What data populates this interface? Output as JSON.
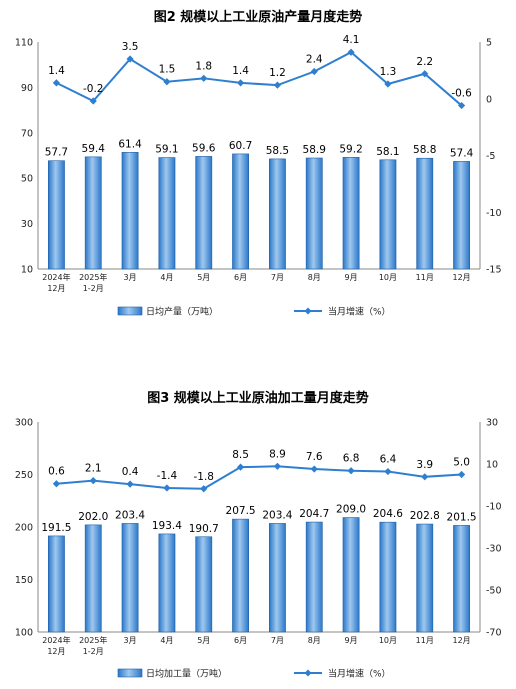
{
  "chart_data": [
    {
      "type": "bar",
      "title": "图2  规模以上工业原油产量月度走势",
      "categories": [
        "2024年\n12月",
        "2025年\n1-2月",
        "3月",
        "4月",
        "5月",
        "6月",
        "7月",
        "8月",
        "9月",
        "10月",
        "11月",
        "12月"
      ],
      "series": [
        {
          "name": "日均产量（万吨）",
          "type": "bar",
          "axis": "left",
          "values": [
            57.7,
            59.4,
            61.4,
            59.1,
            59.6,
            60.7,
            58.5,
            58.9,
            59.2,
            58.1,
            58.8,
            57.4
          ]
        },
        {
          "name": "当月增速（%）",
          "type": "line",
          "axis": "right",
          "values": [
            1.4,
            -0.2,
            3.5,
            1.5,
            1.8,
            1.4,
            1.2,
            2.4,
            4.1,
            1.3,
            2.2,
            -0.6
          ]
        }
      ],
      "ylim": [
        10,
        110
      ],
      "yticks": [
        "110",
        "90",
        "70",
        "50",
        "30",
        "10"
      ],
      "y2lim": [
        -15,
        5
      ],
      "y2ticks": [
        "5",
        "0",
        "-5",
        "-10",
        "-15"
      ],
      "bar_labels": [
        "57.7",
        "59.4",
        "61.4",
        "59.1",
        "59.6",
        "60.7",
        "58.5",
        "58.9",
        "59.2",
        "58.1",
        "58.8",
        "57.4"
      ],
      "line_labels": [
        "1.4",
        "-0.2",
        "3.5",
        "1.5",
        "1.8",
        "1.4",
        "1.2",
        "2.4",
        "4.1",
        "1.3",
        "2.2",
        "-0.6"
      ],
      "legend": {
        "position": "bottom",
        "bar": "日均产量（万吨）",
        "line": "当月增速（%）"
      },
      "grid": false,
      "colors": {
        "bar_fill": "#2a77c9",
        "bar_light": "#9fc8ee",
        "line": "#2e7fd0"
      }
    },
    {
      "type": "bar",
      "title": "图3  规模以上工业原油加工量月度走势",
      "categories": [
        "2024年\n12月",
        "2025年\n1-2月",
        "3月",
        "4月",
        "5月",
        "6月",
        "7月",
        "8月",
        "9月",
        "10月",
        "11月",
        "12月"
      ],
      "series": [
        {
          "name": "日均加工量（万吨）",
          "type": "bar",
          "axis": "left",
          "values": [
            191.5,
            202.0,
            203.4,
            193.4,
            190.7,
            207.5,
            203.4,
            204.7,
            209.0,
            204.6,
            202.8,
            201.5
          ]
        },
        {
          "name": "当月增速（%）",
          "type": "line",
          "axis": "right",
          "values": [
            0.6,
            2.1,
            0.4,
            -1.4,
            -1.8,
            8.5,
            8.9,
            7.6,
            6.8,
            6.4,
            3.9,
            5.0
          ]
        }
      ],
      "ylim": [
        100,
        300
      ],
      "yticks": [
        "300",
        "250",
        "200",
        "150",
        "100"
      ],
      "y2lim": [
        -70,
        30
      ],
      "y2ticks": [
        "30",
        "10",
        "-10",
        "-30",
        "-50",
        "-70"
      ],
      "bar_labels": [
        "191.5",
        "202.0",
        "203.4",
        "193.4",
        "190.7",
        "207.5",
        "203.4",
        "204.7",
        "209.0",
        "204.6",
        "202.8",
        "201.5"
      ],
      "line_labels": [
        "0.6",
        "2.1",
        "0.4",
        "-1.4",
        "-1.8",
        "8.5",
        "8.9",
        "7.6",
        "6.8",
        "6.4",
        "3.9",
        "5.0"
      ],
      "legend": {
        "position": "bottom",
        "bar": "日均加工量（万吨）",
        "line": "当月增速（%）"
      },
      "grid": false,
      "colors": {
        "bar_fill": "#2a77c9",
        "bar_light": "#9fc8ee",
        "line": "#2e7fd0"
      }
    }
  ]
}
